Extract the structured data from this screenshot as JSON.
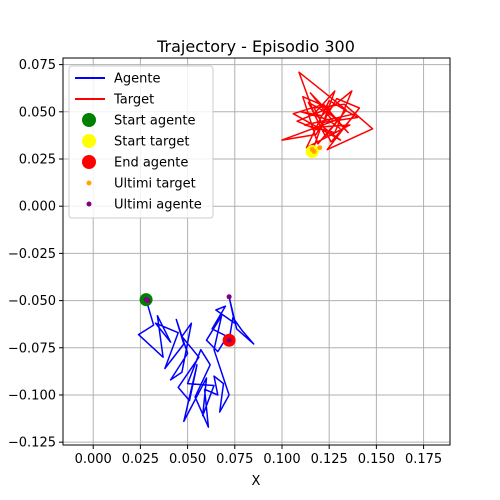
{
  "chart_data": {
    "type": "line",
    "title": "Trajectory - Episodio 300",
    "xlabel": "X",
    "ylabel": "",
    "xlim": [
      -0.016,
      0.189
    ],
    "ylim": [
      -0.1265,
      0.0785
    ],
    "xticks": [
      0.0,
      0.025,
      0.05,
      0.075,
      0.1,
      0.125,
      0.15,
      0.175
    ],
    "xtick_labels": [
      "0.000",
      "0.025",
      "0.050",
      "0.075",
      "0.100",
      "0.125",
      "0.150",
      "0.175"
    ],
    "yticks": [
      -0.125,
      -0.1,
      -0.075,
      -0.05,
      -0.025,
      0.0,
      0.025,
      0.05,
      0.075
    ],
    "ytick_labels": [
      "−0.125",
      "−0.100",
      "−0.075",
      "−0.050",
      "−0.025",
      "0.000",
      "0.025",
      "0.050",
      "0.075"
    ],
    "grid": true,
    "legend_position": "top-left",
    "series": [
      {
        "name": "Agente",
        "kind": "line",
        "color": "#0000ff",
        "points": [
          [
            0.028,
            -0.0495
          ],
          [
            0.032,
            -0.063
          ],
          [
            0.024,
            -0.068
          ],
          [
            0.037,
            -0.08
          ],
          [
            0.034,
            -0.058
          ],
          [
            0.041,
            -0.072
          ],
          [
            0.033,
            -0.062
          ],
          [
            0.045,
            -0.067
          ],
          [
            0.038,
            -0.086
          ],
          [
            0.048,
            -0.073
          ],
          [
            0.044,
            -0.06
          ],
          [
            0.05,
            -0.078
          ],
          [
            0.041,
            -0.092
          ],
          [
            0.047,
            -0.088
          ],
          [
            0.052,
            -0.062
          ],
          [
            0.047,
            -0.069
          ],
          [
            0.056,
            -0.08
          ],
          [
            0.045,
            -0.096
          ],
          [
            0.051,
            -0.103
          ],
          [
            0.055,
            -0.084
          ],
          [
            0.048,
            -0.114
          ],
          [
            0.06,
            -0.091
          ],
          [
            0.058,
            -0.111
          ],
          [
            0.064,
            -0.095
          ],
          [
            0.05,
            -0.094
          ],
          [
            0.057,
            -0.076
          ],
          [
            0.062,
            -0.084
          ],
          [
            0.054,
            -0.101
          ],
          [
            0.061,
            -0.117
          ],
          [
            0.059,
            -0.097
          ],
          [
            0.066,
            -0.1
          ],
          [
            0.064,
            -0.09
          ],
          [
            0.069,
            -0.094
          ],
          [
            0.067,
            -0.109
          ],
          [
            0.072,
            -0.1
          ],
          [
            0.064,
            -0.076
          ],
          [
            0.068,
            -0.058
          ],
          [
            0.06,
            -0.071
          ],
          [
            0.066,
            -0.077
          ],
          [
            0.071,
            -0.069
          ],
          [
            0.063,
            -0.065
          ],
          [
            0.07,
            -0.053
          ],
          [
            0.065,
            -0.055
          ],
          [
            0.075,
            -0.062
          ],
          [
            0.072,
            -0.048
          ],
          [
            0.076,
            -0.065
          ],
          [
            0.085,
            -0.073
          ],
          [
            0.079,
            -0.066
          ],
          [
            0.074,
            -0.059
          ],
          [
            0.072,
            -0.071
          ]
        ]
      },
      {
        "name": "Target",
        "kind": "line",
        "color": "#ff0000",
        "points": [
          [
            0.116,
            0.029
          ],
          [
            0.12,
            0.04
          ],
          [
            0.108,
            0.045
          ],
          [
            0.125,
            0.052
          ],
          [
            0.111,
            0.058
          ],
          [
            0.119,
            0.033
          ],
          [
            0.13,
            0.046
          ],
          [
            0.114,
            0.055
          ],
          [
            0.123,
            0.037
          ],
          [
            0.134,
            0.051
          ],
          [
            0.109,
            0.071
          ],
          [
            0.117,
            0.049
          ],
          [
            0.128,
            0.061
          ],
          [
            0.121,
            0.042
          ],
          [
            0.136,
            0.043
          ],
          [
            0.113,
            0.031
          ],
          [
            0.125,
            0.056
          ],
          [
            0.14,
            0.047
          ],
          [
            0.119,
            0.044
          ],
          [
            0.131,
            0.035
          ],
          [
            0.106,
            0.049
          ],
          [
            0.122,
            0.054
          ],
          [
            0.135,
            0.039
          ],
          [
            0.115,
            0.06
          ],
          [
            0.127,
            0.045
          ],
          [
            0.1,
            0.035
          ],
          [
            0.118,
            0.038
          ],
          [
            0.129,
            0.057
          ],
          [
            0.141,
            0.052
          ],
          [
            0.124,
            0.03
          ],
          [
            0.148,
            0.041
          ],
          [
            0.133,
            0.054
          ],
          [
            0.117,
            0.052
          ],
          [
            0.126,
            0.034
          ],
          [
            0.139,
            0.049
          ],
          [
            0.112,
            0.043
          ],
          [
            0.128,
            0.039
          ],
          [
            0.137,
            0.061
          ],
          [
            0.121,
            0.048
          ],
          [
            0.11,
            0.05
          ],
          [
            0.124,
            0.046
          ],
          [
            0.131,
            0.041
          ]
        ]
      },
      {
        "name": "Start agente",
        "kind": "marker",
        "color": "#008000",
        "points": [
          [
            0.028,
            -0.0495
          ]
        ]
      },
      {
        "name": "Start target",
        "kind": "marker",
        "color": "#ffff00",
        "points": [
          [
            0.116,
            0.029
          ]
        ]
      },
      {
        "name": "End agente",
        "kind": "marker",
        "color": "#ff0000",
        "points": [
          [
            0.072,
            -0.071
          ]
        ]
      },
      {
        "name": "Ultimi target",
        "kind": "dots",
        "color": "#ffa500",
        "points": [
          [
            0.117,
            0.029
          ],
          [
            0.12,
            0.031
          ],
          [
            0.116,
            0.03
          ]
        ]
      },
      {
        "name": "Ultimi agente",
        "kind": "dots",
        "color": "#800080",
        "points": [
          [
            0.028,
            -0.0495
          ],
          [
            0.029,
            -0.05
          ],
          [
            0.072,
            -0.048
          ],
          [
            0.072,
            -0.071
          ]
        ]
      }
    ]
  }
}
